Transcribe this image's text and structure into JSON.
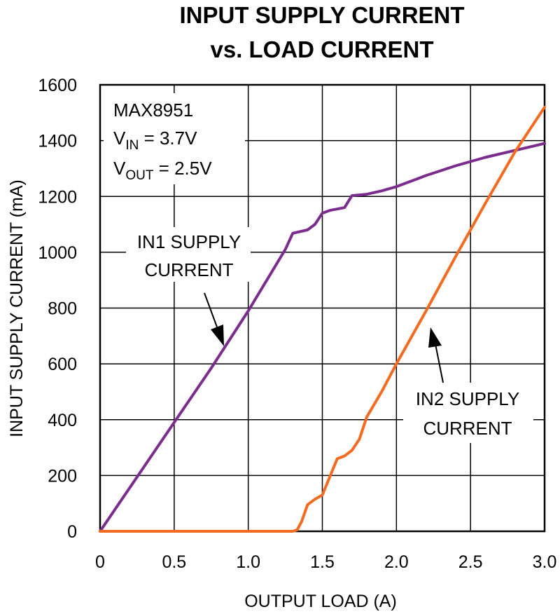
{
  "chart_data": {
    "type": "line",
    "title_line1": "INPUT SUPPLY CURRENT",
    "title_line2": "vs. LOAD CURRENT",
    "xlabel": "OUTPUT LOAD (A)",
    "ylabel": "INPUT SUPPLY CURRENT (mA)",
    "xlim": [
      0,
      3.0
    ],
    "ylim": [
      0,
      1600
    ],
    "xticks": [
      "0",
      "0.5",
      "1.0",
      "1.5",
      "2.0",
      "2.5",
      "3.0"
    ],
    "yticks": [
      "0",
      "200",
      "400",
      "600",
      "800",
      "1000",
      "1200",
      "1400",
      "1600"
    ],
    "grid": true,
    "info": {
      "device": "MAX8951",
      "vin_main": "V",
      "vin_sub": "IN",
      "vin_value": " = 3.7V",
      "vout_main": "V",
      "vout_sub": "OUT",
      "vout_value": " = 2.5V"
    },
    "series": [
      {
        "name": "IN1 SUPPLY CURRENT",
        "color": "#7B2D8E",
        "x": [
          0,
          0.25,
          0.5,
          0.75,
          1.0,
          1.25,
          1.3,
          1.4,
          1.45,
          1.5,
          1.55,
          1.6,
          1.65,
          1.7,
          1.8,
          1.9,
          2.0,
          2.1,
          2.2,
          2.4,
          2.6,
          2.8,
          3.0
        ],
        "y": [
          0,
          195,
          390,
          585,
          790,
          1010,
          1068,
          1080,
          1100,
          1140,
          1150,
          1155,
          1160,
          1203,
          1208,
          1220,
          1235,
          1255,
          1275,
          1310,
          1340,
          1365,
          1390
        ]
      },
      {
        "name": "IN2 SUPPLY CURRENT",
        "color": "#F26B21",
        "x": [
          0,
          1.3,
          1.33,
          1.36,
          1.4,
          1.45,
          1.5,
          1.55,
          1.6,
          1.65,
          1.7,
          1.75,
          1.8,
          1.9,
          2.0,
          2.2,
          2.4,
          2.6,
          2.8,
          3.0
        ],
        "y": [
          0,
          0,
          5,
          35,
          95,
          115,
          130,
          195,
          260,
          270,
          290,
          330,
          410,
          500,
          600,
          790,
          985,
          1175,
          1360,
          1520
        ]
      }
    ],
    "annotations": [
      {
        "line1": "IN1 SUPPLY",
        "line2": "CURRENT",
        "series": "IN1 SUPPLY CURRENT"
      },
      {
        "line1": "IN2 SUPPLY",
        "line2": "CURRENT",
        "series": "IN2 SUPPLY CURRENT"
      }
    ]
  }
}
